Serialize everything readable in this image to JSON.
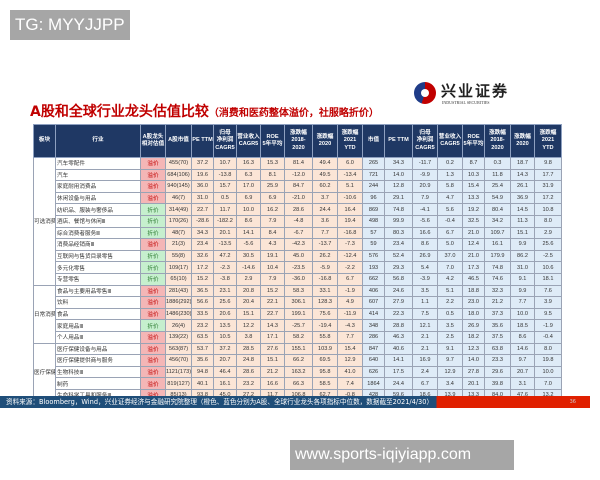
{
  "watermark_top": "TG: MYYJJPP",
  "watermark_bottom": "www.sports-iqiyiapp.com",
  "title": "A股和全球行业龙头估值比较",
  "subtitle": "（消费和医药整体溢价，社服略折价）",
  "logo": {
    "cn": "兴业证券",
    "en": "INDUSTRIAL SECURITIES"
  },
  "colors": {
    "header": "#1f3864",
    "a_share_cells": "#fbe5d6",
    "global_cells": "#deebf7",
    "premium": "#c00000",
    "discount": "#2e7d32"
  },
  "headers": [
    "板块",
    "行业",
    "A股龙头\n相对估值",
    "A股市值",
    "PE TTM",
    "归母\n净利润\nCAGR5",
    "营业收入\nCAGR5",
    "ROE\n5年平均",
    "涨跌幅\n2018-\n2020",
    "涨跌幅\n2020",
    "涨跌幅\n2021\nYTD",
    "市值",
    "PE TTM",
    "归母\n净利润\nCAGR5",
    "营业收入\nCAGR5",
    "ROE\n5年平均",
    "涨跌幅\n2018-\n2020",
    "涨跌幅\n2020",
    "涨跌幅\n2021\nYTD"
  ],
  "sections": [
    {
      "name": "可选消费",
      "rows": [
        [
          "汽车零配件",
          "溢价",
          "455(70)",
          "37.2",
          "10.7",
          "16.3",
          "15.3",
          "81.4",
          "49.4",
          "6.0",
          "265",
          "34.3",
          "-11.7",
          "0.2",
          "8.7",
          "0.3",
          "18.7",
          "9.8"
        ],
        [
          "汽车",
          "溢价",
          "684(106)",
          "19.6",
          "-13.8",
          "6.3",
          "8.1",
          "-12.0",
          "49.5",
          "-13.4",
          "721",
          "14.0",
          "-9.9",
          "1.3",
          "10.3",
          "11.8",
          "14.3",
          "17.7"
        ],
        [
          "家庭耐用消费品",
          "溢价",
          "940(145)",
          "36.0",
          "15.7",
          "17.0",
          "25.9",
          "84.7",
          "60.2",
          "5.1",
          "244",
          "12.8",
          "20.9",
          "5.8",
          "15.4",
          "25.4",
          "26.1",
          "31.9"
        ],
        [
          "休闲设备与用品",
          "溢价",
          "46(7)",
          "31.0",
          "0.5",
          "6.9",
          "6.9",
          "-21.0",
          "3.7",
          "-10.6",
          "96",
          "29.1",
          "7.9",
          "4.7",
          "13.3",
          "54.9",
          "36.9",
          "17.2"
        ],
        [
          "纺织品、服装与奢侈品",
          "折价",
          "314(49)",
          "22.7",
          "11.7",
          "10.0",
          "16.2",
          "28.6",
          "24.4",
          "16.4",
          "869",
          "74.8",
          "-4.1",
          "5.6",
          "19.2",
          "80.4",
          "14.5",
          "10.8"
        ],
        [
          "酒店、餐馆与休闲Ⅲ",
          "折价",
          "170(26)",
          "-28.6",
          "-182.2",
          "8.6",
          "7.9",
          "-4.8",
          "3.6",
          "19.4",
          "498",
          "99.9",
          "-5.6",
          "-0.4",
          "32.5",
          "34.2",
          "11.3",
          "8.0"
        ],
        [
          "综合消费者服务Ⅲ",
          "折价",
          "48(7)",
          "34.3",
          "20.1",
          "14.1",
          "8.4",
          "-6.7",
          "7.7",
          "-16.8",
          "57",
          "80.3",
          "16.6",
          "6.7",
          "21.0",
          "109.7",
          "15.1",
          "2.9"
        ],
        [
          "消费品经销商Ⅲ",
          "溢价",
          "21(3)",
          "23.4",
          "-13.5",
          "-5.6",
          "4.3",
          "-42.3",
          "-13.7",
          "-7.3",
          "59",
          "23.4",
          "8.6",
          "5.0",
          "12.4",
          "16.1",
          "9.9",
          "25.6"
        ],
        [
          "互联网与售货目录零售",
          "折价",
          "55(8)",
          "32.6",
          "47.2",
          "30.5",
          "19.1",
          "45.0",
          "26.2",
          "-12.4",
          "576",
          "52.4",
          "26.9",
          "37.0",
          "21.0",
          "179.9",
          "86.2",
          "-2.5"
        ],
        [
          "多元化零售",
          "折价",
          "109(17)",
          "17.2",
          "-2.3",
          "-14.6",
          "10.4",
          "-23.5",
          "-5.9",
          "-2.2",
          "193",
          "29.3",
          "5.4",
          "7.0",
          "17.3",
          "74.8",
          "31.0",
          "10.6"
        ],
        [
          "专营零售",
          "折价",
          "65(10)",
          "15.2",
          "-3.8",
          "2.9",
          "7.9",
          "-36.0",
          "-16.8",
          "6.7",
          "662",
          "56.8",
          "-3.9",
          "4.2",
          "46.5",
          "74.6",
          "9.1",
          "18.1"
        ]
      ]
    },
    {
      "name": "日常消费",
      "rows": [
        [
          "食品与主要用品零售Ⅲ",
          "溢价",
          "281(43)",
          "36.5",
          "23.1",
          "20.8",
          "15.2",
          "58.3",
          "33.1",
          "-1.9",
          "406",
          "24.6",
          "3.5",
          "5.1",
          "18.8",
          "32.3",
          "9.9",
          "7.6"
        ],
        [
          "饮料",
          "溢价",
          "1886(292)",
          "56.6",
          "25.6",
          "20.4",
          "22.1",
          "306.1",
          "128.3",
          "4.9",
          "607",
          "27.9",
          "1.1",
          "2.2",
          "23.0",
          "21.2",
          "7.7",
          "3.9"
        ],
        [
          "食品",
          "溢价",
          "1486(230)",
          "33.5",
          "20.6",
          "15.1",
          "22.7",
          "199.1",
          "75.6",
          "-11.9",
          "414",
          "22.3",
          "7.5",
          "0.5",
          "18.0",
          "37.3",
          "10.0",
          "9.5"
        ],
        [
          "家庭用品Ⅲ",
          "折价",
          "26(4)",
          "23.2",
          "13.5",
          "12.2",
          "14.3",
          "-25.7",
          "-19.4",
          "-4.3",
          "348",
          "28.8",
          "12.1",
          "3.5",
          "26.9",
          "35.6",
          "18.5",
          "-1.9"
        ],
        [
          "个人用品Ⅲ",
          "溢价",
          "139(22)",
          "63.5",
          "10.5",
          "3.8",
          "17.1",
          "58.2",
          "55.8",
          "7.7",
          "286",
          "46.3",
          "2.1",
          "2.5",
          "18.2",
          "37.5",
          "8.6",
          "-0.4"
        ]
      ]
    },
    {
      "name": "医疗保健",
      "rows": [
        [
          "医疗保健设备与用品",
          "溢价",
          "563(87)",
          "53.7",
          "37.2",
          "28.5",
          "27.6",
          "155.1",
          "103.9",
          "15.4",
          "847",
          "40.6",
          "2.1",
          "9.1",
          "12.3",
          "63.8",
          "14.6",
          "8.0"
        ],
        [
          "医疗保健提供商与服务",
          "溢价",
          "456(70)",
          "35.6",
          "20.7",
          "24.8",
          "15.1",
          "66.2",
          "69.5",
          "12.9",
          "640",
          "14.1",
          "16.9",
          "9.7",
          "14.0",
          "23.3",
          "9.7",
          "19.8"
        ],
        [
          "生物科技Ⅲ",
          "溢价",
          "1121(173)",
          "94.8",
          "46.4",
          "28.6",
          "21.2",
          "163.2",
          "95.8",
          "41.0",
          "626",
          "17.5",
          "2.4",
          "12.9",
          "27.8",
          "29.6",
          "20.7",
          "10.0"
        ],
        [
          "制药",
          "溢价",
          "819(127)",
          "40.1",
          "16.1",
          "23.2",
          "16.6",
          "66.3",
          "58.5",
          "7.4",
          "1864",
          "24.4",
          "6.7",
          "3.4",
          "20.1",
          "39.8",
          "3.1",
          "7.0"
        ],
        [
          "生命科学工具和服务Ⅲ",
          "溢价",
          "85(13)",
          "93.8",
          "45.0",
          "27.2",
          "11.7",
          "106.8",
          "62.7",
          "-0.8",
          "428",
          "59.6",
          "18.6",
          "13.9",
          "13.3",
          "84.0",
          "47.6",
          "13.2"
        ]
      ]
    }
  ],
  "footer": "资料来源：Bloomberg，Wind，兴业证券经济与金融研究院整理（橙色、蓝色分别为A股、全球行业龙头各项指标中位数，数据截至2021/4/30）",
  "page_number": "36"
}
